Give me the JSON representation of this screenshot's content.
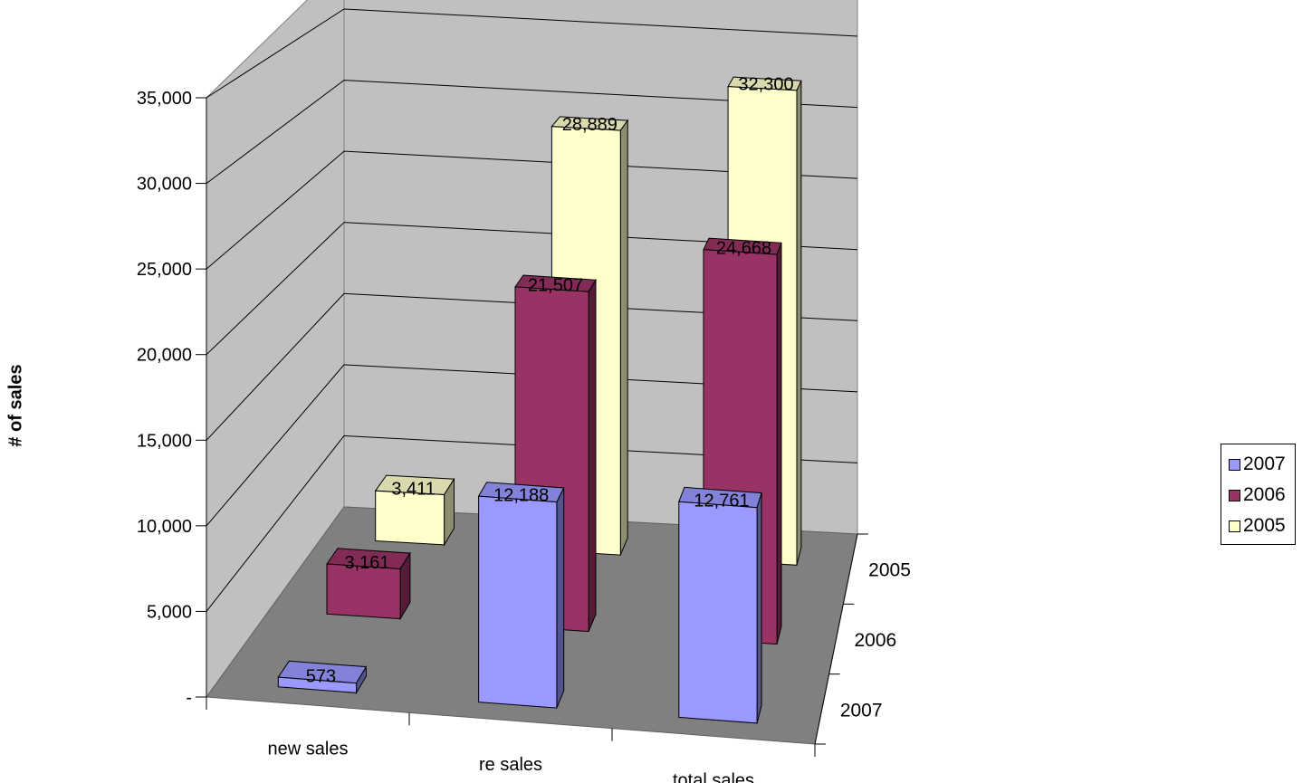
{
  "chart_data": {
    "type": "bar",
    "subtype": "3d-column",
    "categories": [
      "new sales",
      "re sales",
      "total sales"
    ],
    "series": [
      {
        "name": "2007",
        "values": [
          573,
          12188,
          12761
        ],
        "labels": [
          "573",
          "12,188",
          "12,761"
        ],
        "color": "#9999FF"
      },
      {
        "name": "2006",
        "values": [
          3161,
          21507,
          24668
        ],
        "labels": [
          "3,161",
          "21,507",
          "24,668"
        ],
        "color": "#993366"
      },
      {
        "name": "2005",
        "values": [
          3411,
          28889,
          32300
        ],
        "labels": [
          "3,411",
          "28,889",
          "32,300"
        ],
        "color": "#FFFFCC"
      }
    ],
    "depth_labels": [
      "2005",
      "2006",
      "2007"
    ],
    "ylabel": "# of sales",
    "ylim": [
      0,
      35000
    ],
    "y_ticks": [
      "-",
      "5,000",
      "10,000",
      "15,000",
      "20,000",
      "25,000",
      "30,000",
      "35,000"
    ],
    "grid": true,
    "legend_position": "right"
  }
}
